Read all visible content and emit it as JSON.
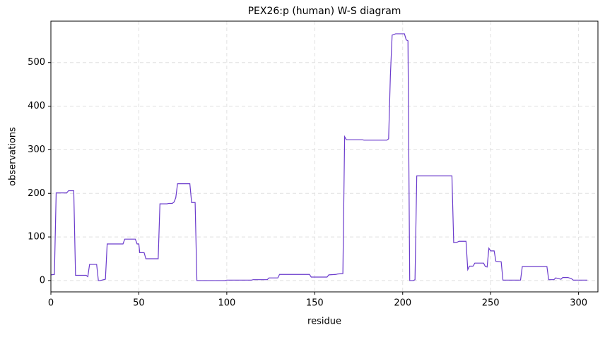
{
  "chart_data": {
    "type": "line",
    "title": "PEX26:p (human) W-S diagram",
    "xlabel": "residue",
    "ylabel": "observations",
    "x": [
      0,
      2,
      3,
      9,
      10,
      13,
      14,
      20,
      21,
      22,
      26,
      27,
      28,
      31,
      32,
      41,
      42,
      48,
      49,
      50,
      50.5,
      53,
      54,
      61,
      62,
      66,
      67,
      69,
      70,
      71,
      72,
      79,
      80,
      82,
      83,
      99,
      100,
      114,
      115,
      123,
      124,
      129,
      130,
      147,
      148,
      157,
      158,
      162,
      163,
      166,
      167,
      168,
      177,
      178,
      191,
      192,
      193,
      194,
      196,
      201,
      202,
      203,
      204,
      206,
      207,
      208,
      228,
      229,
      231,
      232,
      236,
      237,
      238,
      240,
      241,
      246,
      247,
      248,
      249,
      250,
      252,
      253,
      256,
      257,
      267,
      268,
      282,
      283,
      286,
      287,
      289,
      290,
      291,
      294,
      296,
      297,
      305
    ],
    "series": [
      {
        "name": "observations",
        "color": "#6a3acc",
        "values": [
          13,
          14,
          201,
          201,
          206,
          206,
          12,
          12,
          9,
          37,
          37,
          0,
          0,
          3,
          84,
          84,
          95,
          95,
          84,
          84,
          64,
          64,
          50,
          50,
          176,
          176,
          177,
          177,
          180,
          190,
          222,
          222,
          179,
          179,
          0,
          0,
          1,
          1,
          2,
          2,
          6,
          6,
          14,
          14,
          8,
          8,
          13,
          14,
          15,
          16,
          330,
          323,
          323,
          322,
          322,
          325,
          470,
          563,
          566,
          566,
          552,
          550,
          0,
          0,
          2,
          240,
          240,
          87,
          88,
          90,
          90,
          25,
          33,
          33,
          40,
          40,
          32,
          31,
          74,
          68,
          68,
          44,
          43,
          1,
          1,
          32,
          32,
          2,
          2,
          6,
          4,
          3,
          7,
          7,
          4,
          1,
          1
        ]
      }
    ],
    "xlim": [
      0,
      311
    ],
    "ylim": [
      -26,
      595
    ],
    "xticks": [
      0,
      50,
      100,
      150,
      200,
      250,
      300
    ],
    "yticks": [
      0,
      100,
      200,
      300,
      400,
      500
    ],
    "grid": true
  }
}
